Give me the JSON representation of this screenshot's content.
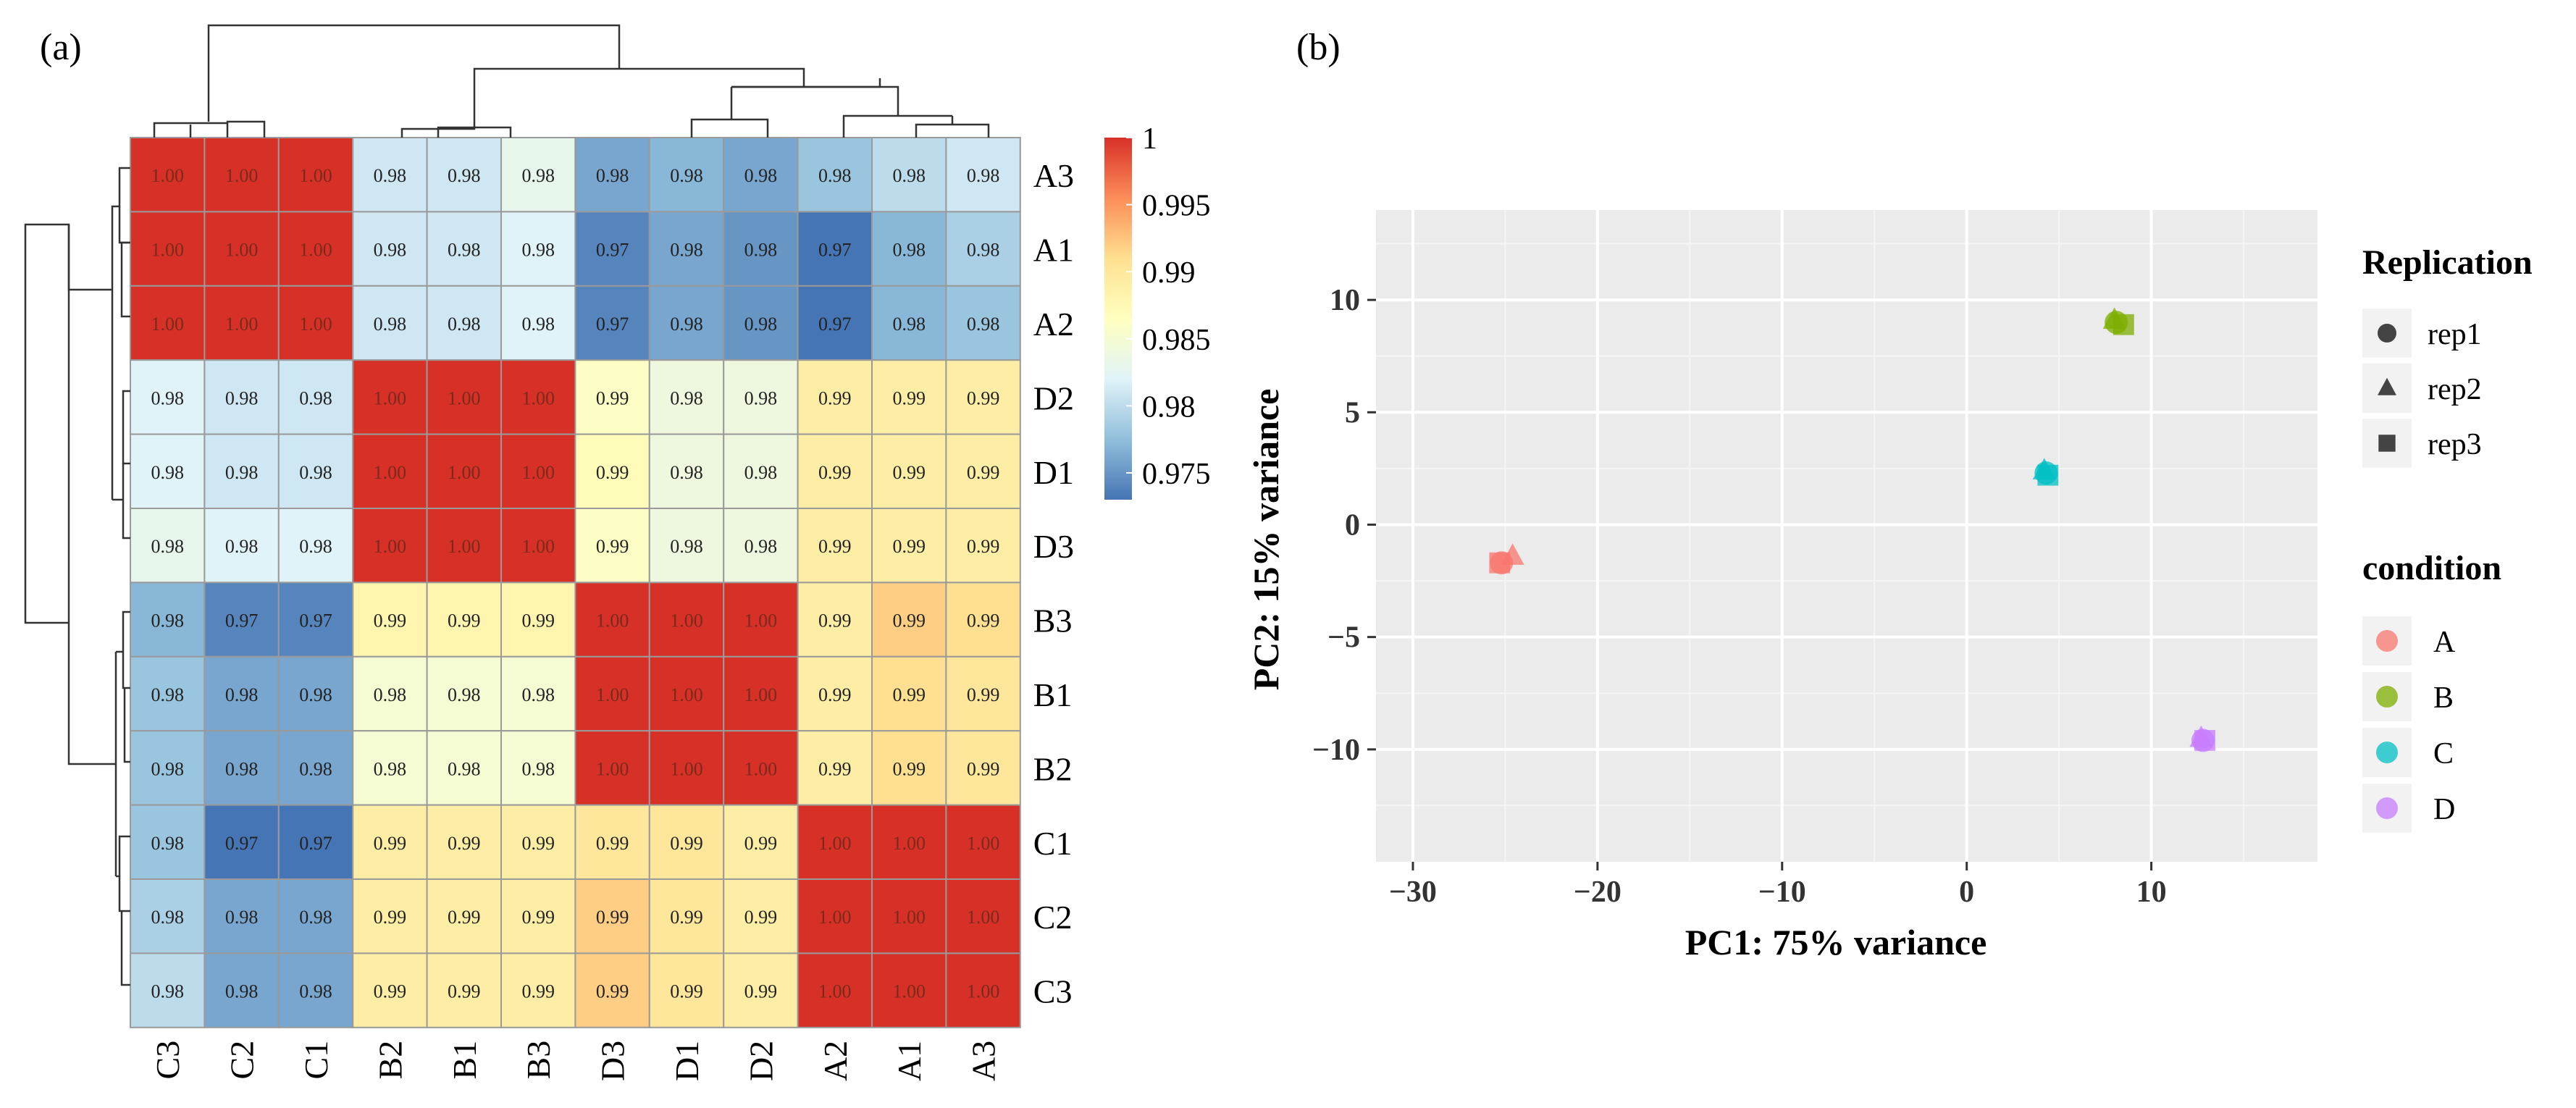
{
  "panels": {
    "a_label": "(a)",
    "b_label": "(b)"
  },
  "chart_data": [
    {
      "type": "heatmap",
      "title": "",
      "row_labels": [
        "A3",
        "A1",
        "A2",
        "D2",
        "D1",
        "D3",
        "B3",
        "B1",
        "B2",
        "C1",
        "C2",
        "C3"
      ],
      "col_labels": [
        "C3",
        "C2",
        "C1",
        "B2",
        "B1",
        "B3",
        "D3",
        "D1",
        "D2",
        "A2",
        "A1",
        "A3"
      ],
      "values": [
        [
          1.0,
          1.0,
          1.0,
          0.98,
          0.98,
          0.98,
          0.98,
          0.98,
          0.98,
          0.98,
          0.98,
          0.98
        ],
        [
          1.0,
          1.0,
          1.0,
          0.98,
          0.98,
          0.98,
          0.97,
          0.98,
          0.98,
          0.97,
          0.98,
          0.98
        ],
        [
          1.0,
          1.0,
          1.0,
          0.98,
          0.98,
          0.98,
          0.97,
          0.98,
          0.98,
          0.97,
          0.98,
          0.98
        ],
        [
          0.98,
          0.98,
          0.98,
          1.0,
          1.0,
          1.0,
          0.99,
          0.98,
          0.98,
          0.99,
          0.99,
          0.99
        ],
        [
          0.98,
          0.98,
          0.98,
          1.0,
          1.0,
          1.0,
          0.99,
          0.98,
          0.98,
          0.99,
          0.99,
          0.99
        ],
        [
          0.98,
          0.98,
          0.98,
          1.0,
          1.0,
          1.0,
          0.99,
          0.98,
          0.98,
          0.99,
          0.99,
          0.99
        ],
        [
          0.98,
          0.97,
          0.97,
          0.99,
          0.99,
          0.99,
          1.0,
          1.0,
          1.0,
          0.99,
          0.99,
          0.99
        ],
        [
          0.98,
          0.98,
          0.98,
          0.98,
          0.98,
          0.98,
          1.0,
          1.0,
          1.0,
          0.99,
          0.99,
          0.99
        ],
        [
          0.98,
          0.98,
          0.98,
          0.98,
          0.98,
          0.98,
          1.0,
          1.0,
          1.0,
          0.99,
          0.99,
          0.99
        ],
        [
          0.98,
          0.97,
          0.97,
          0.99,
          0.99,
          0.99,
          0.99,
          0.99,
          0.99,
          1.0,
          1.0,
          1.0
        ],
        [
          0.98,
          0.98,
          0.98,
          0.99,
          0.99,
          0.99,
          0.99,
          0.99,
          0.99,
          1.0,
          1.0,
          1.0
        ],
        [
          0.98,
          0.98,
          0.98,
          0.99,
          0.99,
          0.99,
          0.99,
          0.99,
          0.99,
          1.0,
          1.0,
          1.0
        ]
      ],
      "color_values": [
        [
          1.0,
          1.0,
          1.0,
          0.981,
          0.981,
          0.983,
          0.976,
          0.977,
          0.976,
          0.978,
          0.98,
          0.981
        ],
        [
          1.0,
          1.0,
          1.0,
          0.981,
          0.981,
          0.982,
          0.974,
          0.976,
          0.975,
          0.973,
          0.977,
          0.979
        ],
        [
          1.0,
          1.0,
          1.0,
          0.981,
          0.981,
          0.982,
          0.974,
          0.976,
          0.975,
          0.973,
          0.977,
          0.978
        ],
        [
          0.982,
          0.981,
          0.981,
          1.0,
          1.0,
          1.0,
          0.986,
          0.984,
          0.984,
          0.989,
          0.989,
          0.989
        ],
        [
          0.982,
          0.981,
          0.981,
          1.0,
          1.0,
          1.0,
          0.987,
          0.984,
          0.984,
          0.989,
          0.989,
          0.989
        ],
        [
          0.983,
          0.982,
          0.982,
          1.0,
          1.0,
          1.0,
          0.986,
          0.984,
          0.984,
          0.989,
          0.989,
          0.989
        ],
        [
          0.977,
          0.974,
          0.974,
          0.988,
          0.988,
          0.988,
          1.0,
          1.0,
          1.0,
          0.989,
          0.992,
          0.991
        ],
        [
          0.978,
          0.976,
          0.976,
          0.985,
          0.985,
          0.985,
          1.0,
          1.0,
          1.0,
          0.989,
          0.991,
          0.99
        ],
        [
          0.978,
          0.976,
          0.976,
          0.985,
          0.985,
          0.985,
          1.0,
          1.0,
          1.0,
          0.989,
          0.991,
          0.99
        ],
        [
          0.978,
          0.973,
          0.973,
          0.989,
          0.989,
          0.989,
          0.99,
          0.99,
          0.989,
          1.0,
          1.0,
          1.0
        ],
        [
          0.979,
          0.976,
          0.976,
          0.989,
          0.989,
          0.989,
          0.992,
          0.99,
          0.989,
          1.0,
          1.0,
          1.0
        ],
        [
          0.98,
          0.976,
          0.976,
          0.989,
          0.989,
          0.989,
          0.992,
          0.99,
          0.989,
          1.0,
          1.0,
          1.0
        ]
      ],
      "colorbar": {
        "min": 0.973,
        "max": 1.0,
        "ticks": [
          1,
          0.995,
          0.99,
          0.985,
          0.98,
          0.975
        ],
        "tick_labels": [
          "1",
          "0.995",
          "0.99",
          "0.985",
          "0.98",
          "0.975"
        ],
        "colors": [
          "#4575b4",
          "#91bfdb",
          "#e0f3f8",
          "#ffffbf",
          "#fee090",
          "#fc8d59",
          "#d73027"
        ]
      }
    },
    {
      "type": "scatter",
      "title": "",
      "xlabel": "PC1: 75% variance",
      "ylabel": "PC2: 15% variance",
      "xlim": [
        -32,
        19
      ],
      "ylim": [
        -15,
        14
      ],
      "xticks": [
        -30,
        -20,
        -10,
        0,
        10
      ],
      "xtick_labels": [
        "−30",
        "−20",
        "−10",
        "0",
        "10"
      ],
      "yticks": [
        10,
        5,
        0,
        -5,
        -10
      ],
      "ytick_labels": [
        "10",
        "5",
        "0",
        "−5",
        "−10"
      ],
      "grid": true,
      "background": "#ebebeb",
      "series": [
        {
          "name": "A",
          "color": "#f8766d",
          "points": [
            {
              "x": -25.2,
              "y": -1.7,
              "rep": "rep1"
            },
            {
              "x": -24.6,
              "y": -1.4,
              "rep": "rep2"
            },
            {
              "x": -25.3,
              "y": -1.7,
              "rep": "rep3"
            }
          ]
        },
        {
          "name": "B",
          "color": "#7cae00",
          "points": [
            {
              "x": 8.1,
              "y": 9.0,
              "rep": "rep1"
            },
            {
              "x": 8.0,
              "y": 9.1,
              "rep": "rep2"
            },
            {
              "x": 8.5,
              "y": 8.9,
              "rep": "rep3"
            }
          ]
        },
        {
          "name": "C",
          "color": "#00bfc4",
          "points": [
            {
              "x": 4.3,
              "y": 2.3,
              "rep": "rep1"
            },
            {
              "x": 4.2,
              "y": 2.4,
              "rep": "rep2"
            },
            {
              "x": 4.4,
              "y": 2.2,
              "rep": "rep3"
            }
          ]
        },
        {
          "name": "D",
          "color": "#c77cff",
          "points": [
            {
              "x": 12.8,
              "y": -9.6,
              "rep": "rep1"
            },
            {
              "x": 12.7,
              "y": -9.5,
              "rep": "rep2"
            },
            {
              "x": 12.9,
              "y": -9.6,
              "rep": "rep3"
            }
          ]
        }
      ],
      "legend_replication": {
        "title": "Replication",
        "items": [
          {
            "label": "rep1",
            "shape": "circle"
          },
          {
            "label": "rep2",
            "shape": "triangle"
          },
          {
            "label": "rep3",
            "shape": "square"
          }
        ]
      },
      "legend_condition": {
        "title": "condition",
        "items": [
          {
            "label": "A",
            "color": "#f8766d"
          },
          {
            "label": "B",
            "color": "#7cae00"
          },
          {
            "label": "C",
            "color": "#00bfc4"
          },
          {
            "label": "D",
            "color": "#c77cff"
          }
        ]
      },
      "legend_position": "right"
    }
  ]
}
